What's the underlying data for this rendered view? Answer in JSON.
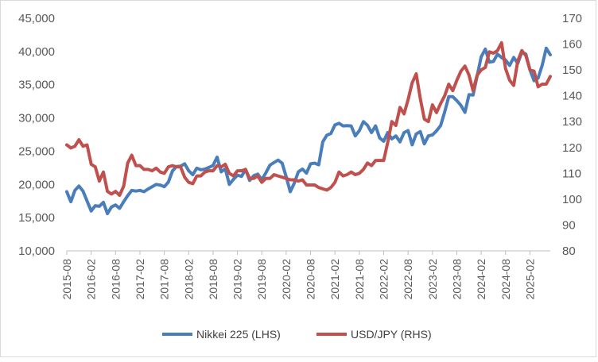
{
  "chart_data": {
    "type": "line",
    "title": "",
    "xlabel": "",
    "ylabel_left": "",
    "ylabel_right": "",
    "grid": false,
    "legend_position": "bottom",
    "x_tick_labels": [
      "2015-08",
      "2016-02",
      "2016-08",
      "2017-02",
      "2017-08",
      "2018-02",
      "2018-08",
      "2019-02",
      "2019-08",
      "2020-02",
      "2020-08",
      "2021-02",
      "2021-08",
      "2022-02",
      "2022-08",
      "2023-02",
      "2023-08",
      "2024-02",
      "2024-08",
      "2025-02"
    ],
    "y_left": {
      "min": 10000,
      "max": 45000,
      "step": 5000,
      "tick_labels": [
        "10,000",
        "15,000",
        "20,000",
        "25,000",
        "30,000",
        "35,000",
        "40,000",
        "45,000"
      ]
    },
    "y_right": {
      "min": 80,
      "max": 170,
      "step": 10,
      "tick_labels": [
        "80",
        "90",
        "100",
        "110",
        "120",
        "130",
        "140",
        "150",
        "160",
        "170"
      ]
    },
    "x": [
      "2015-08",
      "2015-09",
      "2015-10",
      "2015-11",
      "2015-12",
      "2016-01",
      "2016-02",
      "2016-03",
      "2016-04",
      "2016-05",
      "2016-06",
      "2016-07",
      "2016-08",
      "2016-09",
      "2016-10",
      "2016-11",
      "2016-12",
      "2017-01",
      "2017-02",
      "2017-03",
      "2017-04",
      "2017-05",
      "2017-06",
      "2017-07",
      "2017-08",
      "2017-09",
      "2017-10",
      "2017-11",
      "2017-12",
      "2018-01",
      "2018-02",
      "2018-03",
      "2018-04",
      "2018-05",
      "2018-06",
      "2018-07",
      "2018-08",
      "2018-09",
      "2018-10",
      "2018-11",
      "2018-12",
      "2019-01",
      "2019-02",
      "2019-03",
      "2019-04",
      "2019-05",
      "2019-06",
      "2019-07",
      "2019-08",
      "2019-09",
      "2019-10",
      "2019-11",
      "2019-12",
      "2020-01",
      "2020-02",
      "2020-03",
      "2020-04",
      "2020-05",
      "2020-06",
      "2020-07",
      "2020-08",
      "2020-09",
      "2020-10",
      "2020-11",
      "2020-12",
      "2021-01",
      "2021-02",
      "2021-03",
      "2021-04",
      "2021-05",
      "2021-06",
      "2021-07",
      "2021-08",
      "2021-09",
      "2021-10",
      "2021-11",
      "2021-12",
      "2022-01",
      "2022-02",
      "2022-03",
      "2022-04",
      "2022-05",
      "2022-06",
      "2022-07",
      "2022-08",
      "2022-09",
      "2022-10",
      "2022-11",
      "2022-12",
      "2023-01",
      "2023-02",
      "2023-03",
      "2023-04",
      "2023-05",
      "2023-06",
      "2023-07",
      "2023-08",
      "2023-09",
      "2023-10",
      "2023-11",
      "2023-12",
      "2024-01",
      "2024-02",
      "2024-03",
      "2024-04",
      "2024-05",
      "2024-06",
      "2024-07",
      "2024-08",
      "2024-09",
      "2024-10",
      "2024-11",
      "2024-12",
      "2025-01",
      "2025-02",
      "2025-03",
      "2025-04",
      "2025-05",
      "2025-06",
      "2025-07"
    ],
    "series": [
      {
        "name": "Nikkei 225 (LHS)",
        "axis": "left",
        "color": "#4a7ebb",
        "values": [
          18900,
          17400,
          19100,
          19750,
          19000,
          17500,
          16000,
          16800,
          16700,
          17300,
          15600,
          16600,
          16900,
          16400,
          17400,
          18300,
          19100,
          19000,
          19100,
          18900,
          19300,
          19650,
          20000,
          19900,
          19650,
          20350,
          22000,
          22700,
          22750,
          23100,
          22050,
          21450,
          22450,
          22200,
          22300,
          22550,
          22850,
          24100,
          21900,
          22350,
          20000,
          20750,
          21400,
          21200,
          22250,
          20600,
          21300,
          21550,
          20700,
          21750,
          22900,
          23300,
          23650,
          23200,
          21150,
          18900,
          20200,
          21900,
          22300,
          21700,
          23100,
          23200,
          22950,
          26400,
          27400,
          27650,
          28950,
          29200,
          28800,
          28850,
          28800,
          27300,
          28100,
          29450,
          28900,
          27800,
          28800,
          27000,
          26500,
          27800,
          26850,
          27300,
          26400,
          27800,
          28100,
          25950,
          27600,
          27950,
          26100,
          27300,
          27450,
          28050,
          28850,
          30900,
          33200,
          33200,
          32600,
          31900,
          30850,
          33500,
          33450,
          36300,
          39200,
          40350,
          38400,
          38500,
          39600,
          39100,
          38700,
          37900,
          39100,
          38200,
          39900,
          39600,
          37200,
          35600,
          36000,
          37900,
          40500,
          39500
        ]
      },
      {
        "name": "USD/JPY (RHS)",
        "axis": "right",
        "color": "#c0504d",
        "values": [
          121.0,
          119.8,
          120.5,
          123.0,
          120.5,
          121.0,
          113.5,
          112.5,
          107.0,
          110.5,
          103.0,
          102.0,
          103.0,
          101.5,
          105.0,
          114.0,
          117.0,
          113.0,
          113.0,
          111.5,
          111.5,
          111.0,
          112.0,
          110.5,
          110.0,
          112.5,
          113.0,
          112.5,
          112.5,
          108.5,
          106.5,
          106.0,
          109.0,
          109.0,
          110.5,
          111.0,
          111.0,
          113.0,
          112.5,
          113.5,
          110.0,
          109.0,
          111.0,
          111.0,
          111.5,
          108.0,
          108.0,
          109.0,
          106.5,
          108.0,
          108.0,
          109.5,
          109.0,
          108.5,
          108.0,
          107.5,
          107.5,
          107.0,
          107.5,
          105.5,
          105.5,
          105.5,
          104.5,
          104.0,
          103.5,
          104.5,
          106.5,
          110.5,
          109.0,
          109.5,
          110.5,
          109.5,
          110.0,
          111.5,
          114.0,
          113.0,
          115.0,
          115.0,
          115.0,
          122.0,
          130.0,
          128.5,
          135.5,
          133.0,
          138.5,
          145.0,
          148.5,
          139.0,
          131.0,
          130.0,
          136.5,
          133.5,
          137.0,
          140.0,
          144.5,
          142.0,
          146.0,
          149.5,
          151.5,
          148.0,
          142.0,
          148.0,
          150.0,
          151.0,
          157.0,
          156.5,
          157.5,
          160.5,
          150.5,
          146.0,
          144.0,
          153.5,
          157.5,
          155.5,
          150.0,
          149.5,
          143.5,
          144.5,
          144.5,
          147.5
        ]
      }
    ]
  }
}
